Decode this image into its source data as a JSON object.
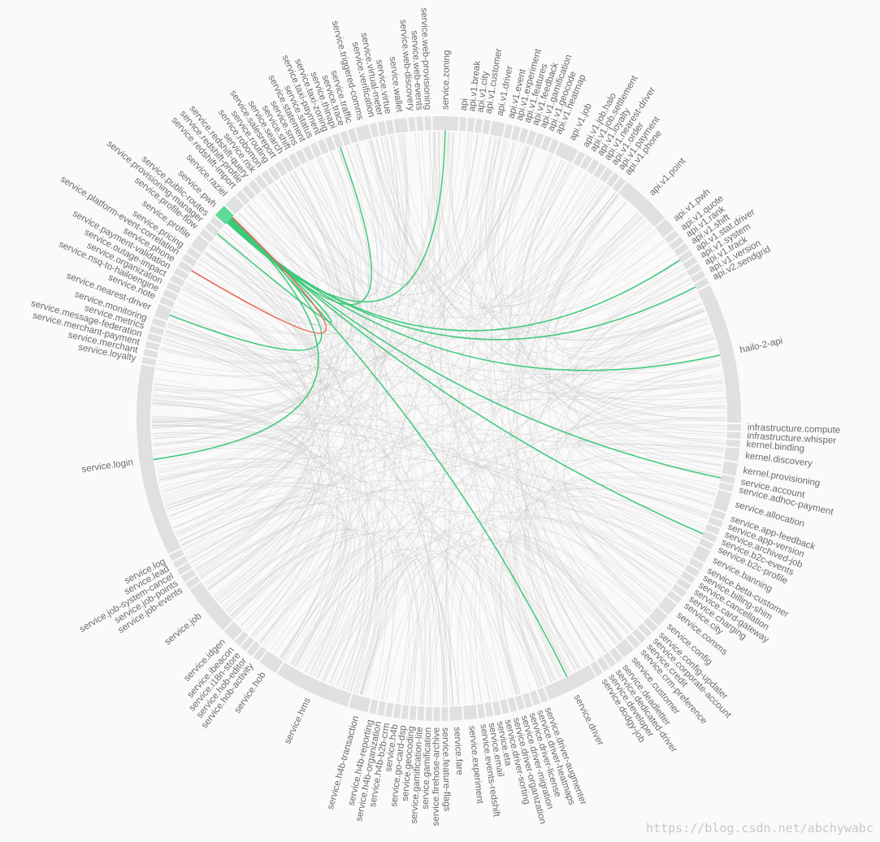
{
  "title": "",
  "colors": {
    "background": "#fafafa",
    "arc": "#e0e0e0",
    "label": "#6b6b6b",
    "chord_default": "#c9c9c9",
    "chord_outgoing": "#3cc878",
    "chord_incoming": "#e8604c",
    "focus_arc": "#5fd99a"
  },
  "chart_data": {
    "type": "chord",
    "focus_node": "service.pwh",
    "nodes": [
      {
        "name": "service.zoning",
        "weight": 4
      },
      {
        "name": "api",
        "weight": 1
      },
      {
        "name": "api.v1.break",
        "weight": 1
      },
      {
        "name": "api.v1.city",
        "weight": 1
      },
      {
        "name": "api.v1.customer",
        "weight": 1
      },
      {
        "name": "api.v1.driver",
        "weight": 2
      },
      {
        "name": "api.v1.event",
        "weight": 1
      },
      {
        "name": "api.v1.experiment",
        "weight": 1
      },
      {
        "name": "api.v1.features",
        "weight": 1
      },
      {
        "name": "api.v1.feedback",
        "weight": 1
      },
      {
        "name": "api.v1.gamification",
        "weight": 1
      },
      {
        "name": "api.v1.geocode",
        "weight": 1
      },
      {
        "name": "api.v1.heatmap",
        "weight": 1
      },
      {
        "name": "api.v1.job",
        "weight": 3
      },
      {
        "name": "api.v1.job.halo",
        "weight": 1
      },
      {
        "name": "api.v1.job.settlement",
        "weight": 1
      },
      {
        "name": "api.v1.loyalty",
        "weight": 1
      },
      {
        "name": "api.v1.nearest-driver",
        "weight": 1
      },
      {
        "name": "api.v1.order",
        "weight": 1
      },
      {
        "name": "api.v1.payment",
        "weight": 1
      },
      {
        "name": "api.v1.phone",
        "weight": 1
      },
      {
        "name": "api.v1.point",
        "weight": 8
      },
      {
        "name": "api.v1.pwh",
        "weight": 2
      },
      {
        "name": "api.v1.quote",
        "weight": 1
      },
      {
        "name": "api.v1.rank",
        "weight": 1
      },
      {
        "name": "api.v1.shift",
        "weight": 1
      },
      {
        "name": "api.v1.stat.driver",
        "weight": 1
      },
      {
        "name": "api.v1.system",
        "weight": 1
      },
      {
        "name": "api.v1.track",
        "weight": 1
      },
      {
        "name": "api.v1.version",
        "weight": 1
      },
      {
        "name": "api.v2.sendgrid",
        "weight": 1
      },
      {
        "name": "hailo-2-api",
        "weight": 22
      },
      {
        "name": "infrastructure.compute",
        "weight": 1
      },
      {
        "name": "infrastructure.whisper",
        "weight": 1
      },
      {
        "name": "kernel.binding",
        "weight": 1
      },
      {
        "name": "kernel.discovery",
        "weight": 2
      },
      {
        "name": "kernel.provisioning",
        "weight": 2
      },
      {
        "name": "service.account",
        "weight": 1
      },
      {
        "name": "service.adhoc-payment",
        "weight": 1
      },
      {
        "name": "service.allocation",
        "weight": 3
      },
      {
        "name": "service.app-feedback",
        "weight": 1
      },
      {
        "name": "service.app-version",
        "weight": 1
      },
      {
        "name": "service.archived-job",
        "weight": 1
      },
      {
        "name": "service.b2c-events",
        "weight": 1
      },
      {
        "name": "service.b2c-profile",
        "weight": 1
      },
      {
        "name": "service.banning",
        "weight": 2
      },
      {
        "name": "service.beta-customer",
        "weight": 1
      },
      {
        "name": "service.billing-shim",
        "weight": 1
      },
      {
        "name": "service.cancellation",
        "weight": 1
      },
      {
        "name": "service.card-gateway",
        "weight": 1
      },
      {
        "name": "service.charging",
        "weight": 1
      },
      {
        "name": "service.city",
        "weight": 1
      },
      {
        "name": "service.comms",
        "weight": 2
      },
      {
        "name": "service.config",
        "weight": 2
      },
      {
        "name": "service.config-updater",
        "weight": 1
      },
      {
        "name": "service.corporate-account",
        "weight": 1
      },
      {
        "name": "service.credit",
        "weight": 1
      },
      {
        "name": "service.crm-preference",
        "weight": 1
      },
      {
        "name": "service.customer",
        "weight": 2
      },
      {
        "name": "service.deadletter",
        "weight": 1
      },
      {
        "name": "service.dedicated-driver",
        "weight": 1
      },
      {
        "name": "service.developer",
        "weight": 1
      },
      {
        "name": "service.dodgy-job",
        "weight": 1
      },
      {
        "name": "service.driver",
        "weight": 8
      },
      {
        "name": "service.driver-augmenter",
        "weight": 1
      },
      {
        "name": "service.driver-heatmaps",
        "weight": 1
      },
      {
        "name": "service.driver-license",
        "weight": 1
      },
      {
        "name": "service.driver-migration",
        "weight": 1
      },
      {
        "name": "service.driver-organization",
        "weight": 1
      },
      {
        "name": "service.driver-sorting",
        "weight": 1
      },
      {
        "name": "service.eta",
        "weight": 1
      },
      {
        "name": "service.email",
        "weight": 1
      },
      {
        "name": "service.events-redshift",
        "weight": 1
      },
      {
        "name": "service.experiment",
        "weight": 2
      },
      {
        "name": "service.fare",
        "weight": 2
      },
      {
        "name": "service.feature-flags",
        "weight": 1
      },
      {
        "name": "service.firehose-archive",
        "weight": 1
      },
      {
        "name": "service.gamification",
        "weight": 1
      },
      {
        "name": "service.gamification-lite",
        "weight": 1
      },
      {
        "name": "service.geocoding",
        "weight": 1
      },
      {
        "name": "service.go-card-dsp",
        "weight": 1
      },
      {
        "name": "service.h4b",
        "weight": 1
      },
      {
        "name": "service.h4b-b2b-crm",
        "weight": 1
      },
      {
        "name": "service.h4b-organization",
        "weight": 1
      },
      {
        "name": "service.h4b-reporting",
        "weight": 1
      },
      {
        "name": "service.h4b-transaction",
        "weight": 3
      },
      {
        "name": "service.hms",
        "weight": 12
      },
      {
        "name": "service.hob",
        "weight": 3
      },
      {
        "name": "service.hob-activity",
        "weight": 1
      },
      {
        "name": "service.hob-editor",
        "weight": 1
      },
      {
        "name": "service.i18n-store",
        "weight": 1
      },
      {
        "name": "service.ibeacon",
        "weight": 1
      },
      {
        "name": "service.idgen",
        "weight": 2
      },
      {
        "name": "service.job",
        "weight": 8
      },
      {
        "name": "service.job-events",
        "weight": 1
      },
      {
        "name": "service.job-points",
        "weight": 1
      },
      {
        "name": "service.job-system-cancel",
        "weight": 1
      },
      {
        "name": "service.lead",
        "weight": 1
      },
      {
        "name": "service.log",
        "weight": 1
      },
      {
        "name": "service.login",
        "weight": 30
      },
      {
        "name": "service.loyalty",
        "weight": 1
      },
      {
        "name": "service.merchant",
        "weight": 1
      },
      {
        "name": "service.merchant-payment",
        "weight": 1
      },
      {
        "name": "service.message-federation",
        "weight": 1
      },
      {
        "name": "service.metrics",
        "weight": 1
      },
      {
        "name": "service.monitoring",
        "weight": 1
      },
      {
        "name": "service.nearest-driver",
        "weight": 2
      },
      {
        "name": "service.note",
        "weight": 1
      },
      {
        "name": "service.nsq-to-hailoengine",
        "weight": 1
      },
      {
        "name": "service.organization",
        "weight": 1
      },
      {
        "name": "service.outage-impact",
        "weight": 1
      },
      {
        "name": "service.payment-validation",
        "weight": 1
      },
      {
        "name": "service.phone",
        "weight": 1
      },
      {
        "name": "service.platform-event-correlation",
        "weight": 1
      },
      {
        "name": "service.pricing",
        "weight": 1
      },
      {
        "name": "service.profile",
        "weight": 2
      },
      {
        "name": "service.profile-flow",
        "weight": 1
      },
      {
        "name": "service.provisioning-manager",
        "weight": 1
      },
      {
        "name": "service.public-routes",
        "weight": 1
      },
      {
        "name": "service.pwh",
        "weight": 2
      },
      {
        "name": "service.raziel",
        "weight": 2
      },
      {
        "name": "service.redshift-import",
        "weight": 1
      },
      {
        "name": "service.redshift-profile",
        "weight": 1
      },
      {
        "name": "service.redshift-query",
        "weight": 1
      },
      {
        "name": "service.risk",
        "weight": 1
      },
      {
        "name": "service.robomon",
        "weight": 1
      },
      {
        "name": "service.routing",
        "weight": 1
      },
      {
        "name": "service.salesreport",
        "weight": 1
      },
      {
        "name": "service.search",
        "weight": 1
      },
      {
        "name": "service.shift",
        "weight": 1
      },
      {
        "name": "service.sms",
        "weight": 1
      },
      {
        "name": "service.statement",
        "weight": 1
      },
      {
        "name": "service.status",
        "weight": 1
      },
      {
        "name": "service.taxi-payment",
        "weight": 1
      },
      {
        "name": "service.taxi-zoning",
        "weight": 1
      },
      {
        "name": "service.thinapi",
        "weight": 1
      },
      {
        "name": "service.trace",
        "weight": 1
      },
      {
        "name": "service.traffic",
        "weight": 1
      },
      {
        "name": "service.triggered-comms",
        "weight": 2
      },
      {
        "name": "service.verification",
        "weight": 1
      },
      {
        "name": "service.virtual-meter",
        "weight": 1
      },
      {
        "name": "service.virtue",
        "weight": 1
      },
      {
        "name": "service.wallet",
        "weight": 2
      },
      {
        "name": "service.web-discovery",
        "weight": 1
      },
      {
        "name": "service.web-events",
        "weight": 1
      },
      {
        "name": "service.web-provisioning",
        "weight": 1
      }
    ],
    "highlighted_links": [
      {
        "source": "service.pwh",
        "target": "service.zoning",
        "kind": "outgoing"
      },
      {
        "source": "service.pwh",
        "target": "service.thinapi",
        "kind": "outgoing"
      },
      {
        "source": "service.pwh",
        "target": "api.v1.stat.driver",
        "kind": "outgoing"
      },
      {
        "source": "service.pwh",
        "target": "api.v2.sendgrid",
        "kind": "outgoing"
      },
      {
        "source": "service.pwh",
        "target": "hailo-2-api",
        "kind": "outgoing"
      },
      {
        "source": "service.pwh",
        "target": "service.account",
        "kind": "outgoing"
      },
      {
        "source": "service.pwh",
        "target": "service.b2c-events",
        "kind": "outgoing"
      },
      {
        "source": "service.pwh",
        "target": "service.driver",
        "kind": "outgoing"
      },
      {
        "source": "service.pwh",
        "target": "service.login",
        "kind": "outgoing"
      },
      {
        "source": "service.pwh",
        "target": "service.nearest-driver",
        "kind": "outgoing"
      },
      {
        "source": "service.pwh",
        "target": "service.provisioning-manager",
        "kind": "outgoing"
      },
      {
        "source": "service.phone",
        "target": "service.pwh",
        "kind": "incoming"
      }
    ],
    "background_link_count": 420
  },
  "watermark": "https://blog.csdn.net/abchywabc"
}
